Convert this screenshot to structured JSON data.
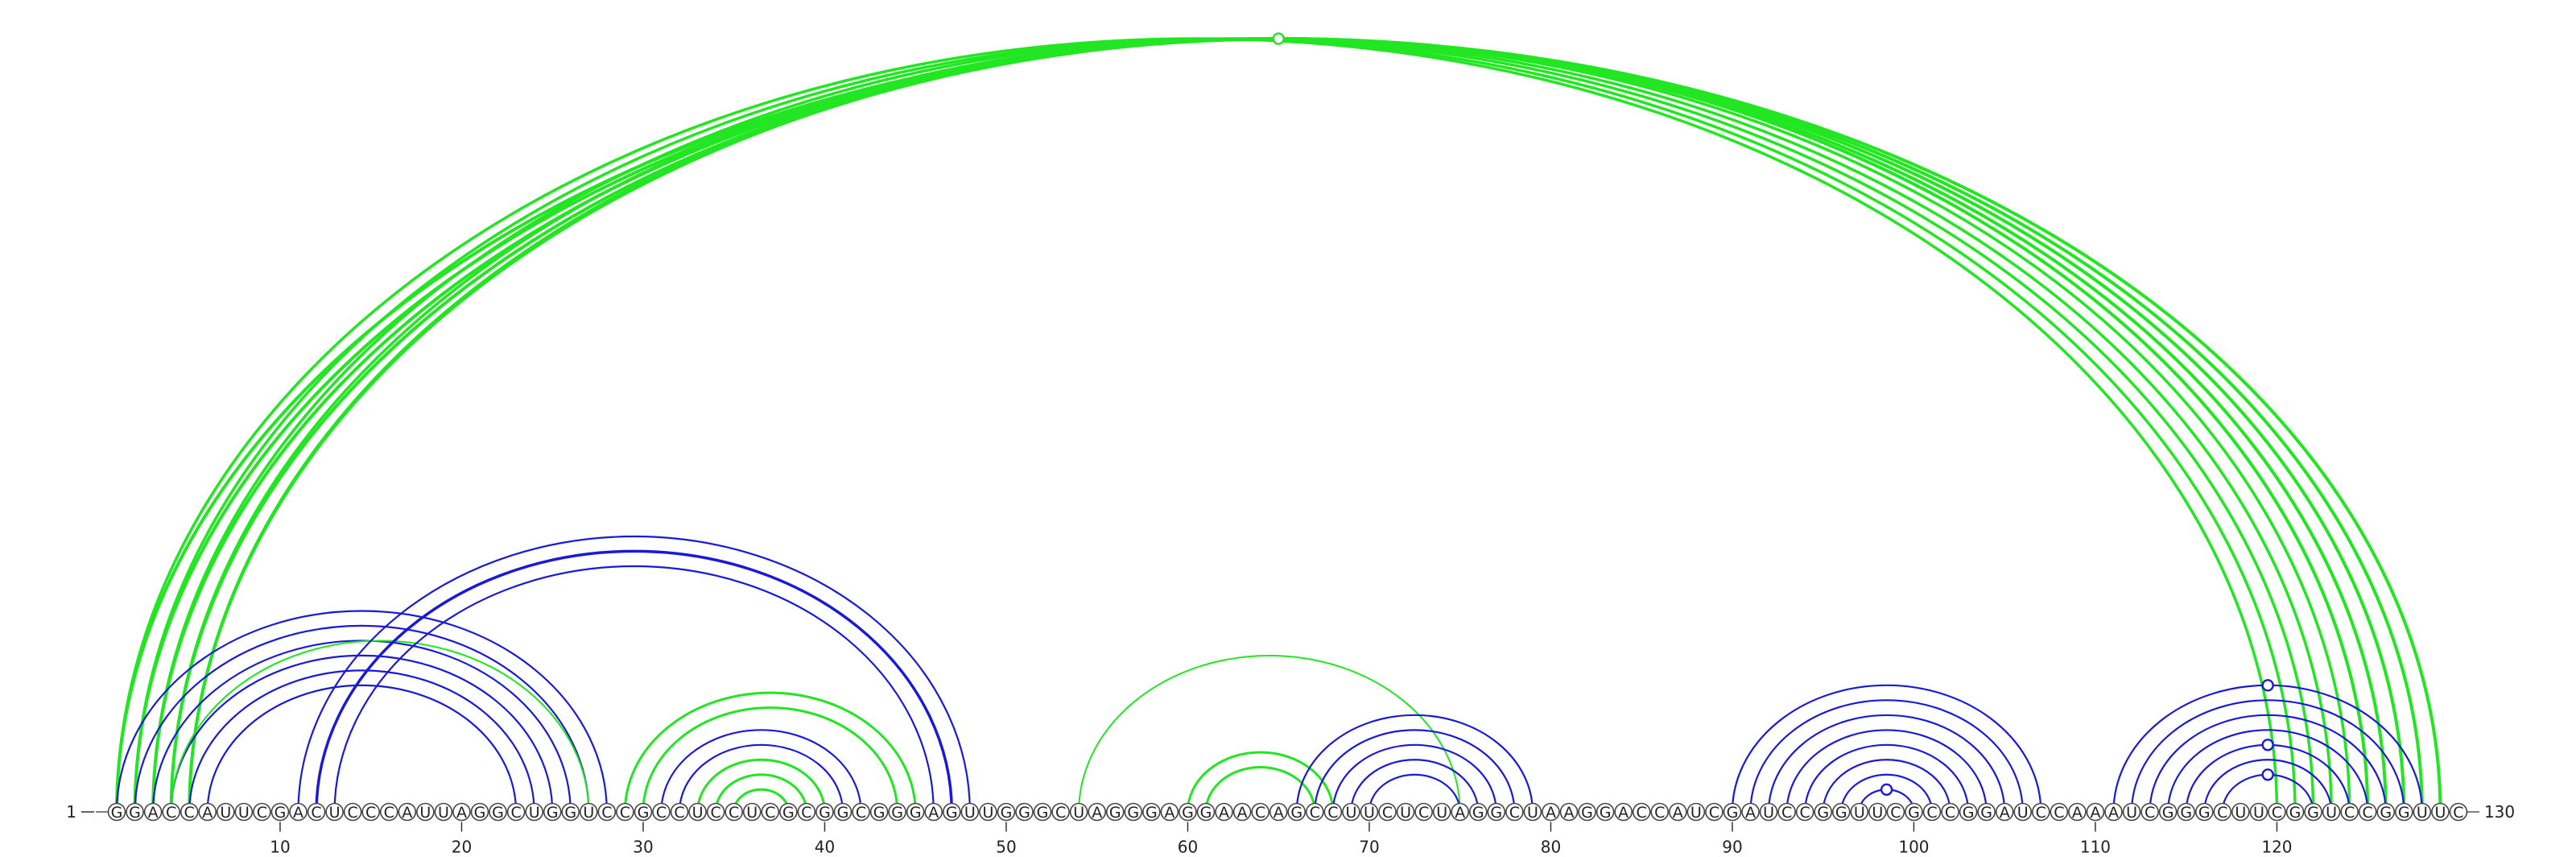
{
  "sequence": "GGACCAUUCGACUCCCAUUAGGCUGGUCCGCCUCCUCGCGGCGGGAGUUGGGCUAGGGAGGAACAGCCUUCUCUAGGCUAAGGACCAUCGAUCCGGUUCGCCGGAUCCAAAUCGGGCUUCGGUCCGGUUC",
  "start_label": "1",
  "end_label": "130",
  "tick_labels": [
    "10",
    "20",
    "30",
    "40",
    "50",
    "60",
    "70",
    "80",
    "90",
    "100",
    "110",
    "120"
  ],
  "colors": {
    "blue": "#1a1ad6",
    "green": "#22e622",
    "nucleotide_outline": "#444444"
  },
  "arcs": [
    {
      "i": 1,
      "j": 129,
      "color": "green",
      "width": 4
    },
    {
      "i": 2,
      "j": 128,
      "color": "green",
      "width": 4
    },
    {
      "i": 3,
      "j": 127,
      "color": "green",
      "width": 4
    },
    {
      "i": 4,
      "j": 126,
      "color": "green",
      "width": 4
    },
    {
      "i": 5,
      "j": 125,
      "color": "green",
      "width": 4
    },
    {
      "i": 1,
      "j": 120,
      "color": "green",
      "width": 3.5
    },
    {
      "i": 2,
      "j": 121,
      "color": "green",
      "width": 3.5
    },
    {
      "i": 3,
      "j": 122,
      "color": "green",
      "width": 3.5
    },
    {
      "i": 4,
      "j": 123,
      "color": "green",
      "width": 3.5
    },
    {
      "i": 5,
      "j": 124,
      "color": "green",
      "width": 3.5
    },
    {
      "i": 1,
      "j": 28,
      "color": "blue",
      "width": 2.2
    },
    {
      "i": 2,
      "j": 27,
      "color": "blue",
      "width": 2.2
    },
    {
      "i": 3,
      "j": 26,
      "color": "blue",
      "width": 2.2
    },
    {
      "i": 4,
      "j": 25,
      "color": "blue",
      "width": 2.2
    },
    {
      "i": 5,
      "j": 24,
      "color": "blue",
      "width": 2.2
    },
    {
      "i": 6,
      "j": 23,
      "color": "blue",
      "width": 2.2
    },
    {
      "i": 4,
      "j": 27,
      "color": "green",
      "width": 2
    },
    {
      "i": 11,
      "j": 48,
      "color": "blue",
      "width": 2.2
    },
    {
      "i": 12,
      "j": 47,
      "color": "blue",
      "width": 3.5
    },
    {
      "i": 13,
      "j": 46,
      "color": "blue",
      "width": 2.2
    },
    {
      "i": 29,
      "j": 45,
      "color": "green",
      "width": 3
    },
    {
      "i": 30,
      "j": 44,
      "color": "green",
      "width": 3
    },
    {
      "i": 31,
      "j": 42,
      "color": "blue",
      "width": 2.2
    },
    {
      "i": 32,
      "j": 41,
      "color": "blue",
      "width": 2.2
    },
    {
      "i": 33,
      "j": 40,
      "color": "green",
      "width": 3
    },
    {
      "i": 34,
      "j": 39,
      "color": "green",
      "width": 3
    },
    {
      "i": 35,
      "j": 38,
      "color": "green",
      "width": 3
    },
    {
      "i": 54,
      "j": 75,
      "color": "green",
      "width": 2
    },
    {
      "i": 60,
      "j": 68,
      "color": "green",
      "width": 3
    },
    {
      "i": 61,
      "j": 67,
      "color": "green",
      "width": 3
    },
    {
      "i": 66,
      "j": 79,
      "color": "blue",
      "width": 2.2
    },
    {
      "i": 67,
      "j": 78,
      "color": "blue",
      "width": 2.2
    },
    {
      "i": 68,
      "j": 77,
      "color": "blue",
      "width": 2.2
    },
    {
      "i": 69,
      "j": 76,
      "color": "blue",
      "width": 2.2
    },
    {
      "i": 70,
      "j": 75,
      "color": "blue",
      "width": 2.2
    },
    {
      "i": 90,
      "j": 107,
      "color": "blue",
      "width": 2.2
    },
    {
      "i": 91,
      "j": 106,
      "color": "blue",
      "width": 2.2
    },
    {
      "i": 92,
      "j": 105,
      "color": "blue",
      "width": 2.2
    },
    {
      "i": 93,
      "j": 104,
      "color": "blue",
      "width": 2.2
    },
    {
      "i": 94,
      "j": 103,
      "color": "blue",
      "width": 2.2
    },
    {
      "i": 95,
      "j": 102,
      "color": "blue",
      "width": 2.2
    },
    {
      "i": 96,
      "j": 101,
      "color": "blue",
      "width": 2.2
    },
    {
      "i": 97,
      "j": 100,
      "color": "blue",
      "width": 2.2
    },
    {
      "i": 111,
      "j": 128,
      "color": "blue",
      "width": 2.2
    },
    {
      "i": 112,
      "j": 127,
      "color": "blue",
      "width": 2.2
    },
    {
      "i": 113,
      "j": 126,
      "color": "blue",
      "width": 2.2
    },
    {
      "i": 114,
      "j": 125,
      "color": "blue",
      "width": 2.2
    },
    {
      "i": 115,
      "j": 124,
      "color": "blue",
      "width": 2.2
    },
    {
      "i": 116,
      "j": 123,
      "color": "blue",
      "width": 2.2
    },
    {
      "i": 117,
      "j": 122,
      "color": "blue",
      "width": 2.2
    }
  ],
  "arc_markers": [
    {
      "i": 1,
      "j": 129
    },
    {
      "i": 97,
      "j": 100
    },
    {
      "i": 111,
      "j": 128
    },
    {
      "i": 115,
      "j": 124
    },
    {
      "i": 117,
      "j": 122
    }
  ]
}
